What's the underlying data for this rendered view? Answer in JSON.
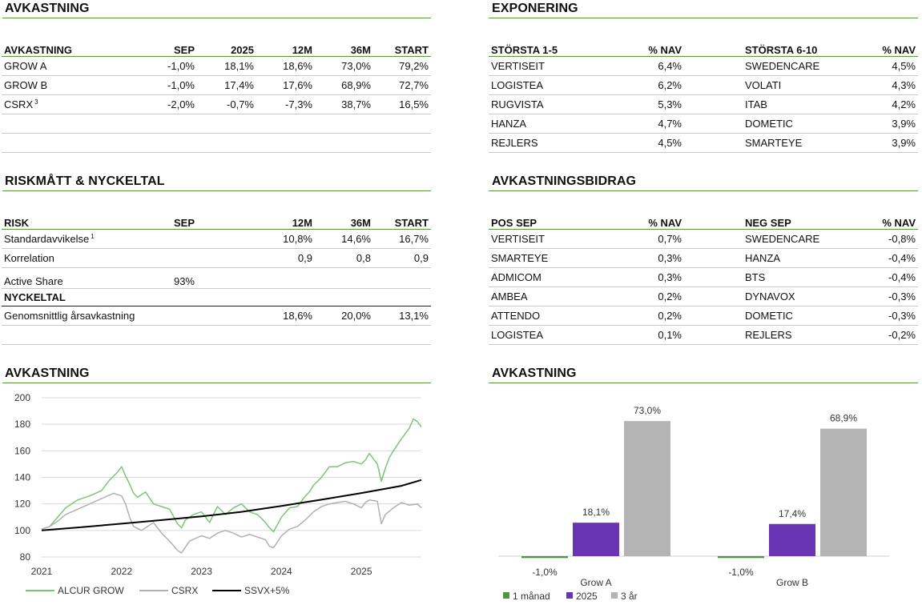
{
  "sections": {
    "returns_title": "AVKASTNING",
    "exposure_title": "EXPONERING",
    "risk_title": "RISKMÅTT & NYCKELTAL",
    "contribution_title": "AVKASTNINGSBIDRAG",
    "line_chart_title": "AVKASTNING",
    "bar_chart_title": "AVKASTNING"
  },
  "returns_table": {
    "headers": [
      "AVKASTNING",
      "SEP",
      "2025",
      "12M",
      "36M",
      "START"
    ],
    "rows": [
      {
        "name": "GROW A",
        "sup": "",
        "values": [
          "-1,0%",
          "18,1%",
          "18,6%",
          "73,0%",
          "79,2%"
        ]
      },
      {
        "name": "GROW B",
        "sup": "",
        "values": [
          "-1,0%",
          "17,4%",
          "17,6%",
          "68,9%",
          "72,7%"
        ]
      },
      {
        "name": "CSRX",
        "sup": "3",
        "values": [
          "-2,0%",
          "-0,7%",
          "-7,3%",
          "38,7%",
          "16,5%"
        ]
      }
    ]
  },
  "exposure_table": {
    "headers": [
      "STÖRSTA 1-5",
      "% NAV",
      "STÖRSTA 6-10",
      "% NAV"
    ],
    "rows": [
      [
        "VERTISEIT",
        "6,4%",
        "SWEDENCARE",
        "4,5%"
      ],
      [
        "LOGISTEA",
        "6,2%",
        "VOLATI",
        "4,3%"
      ],
      [
        "RUGVISTA",
        "5,3%",
        "ITAB",
        "4,2%"
      ],
      [
        "HANZA",
        "4,7%",
        "DOMETIC",
        "3,9%"
      ],
      [
        "REJLERS",
        "4,5%",
        "SMARTEYE",
        "3,9%"
      ]
    ]
  },
  "risk_table": {
    "headers": [
      "RISK",
      "SEP",
      "12M",
      "36M",
      "START"
    ],
    "rows": [
      {
        "name": "Standardavvikelse",
        "sup": "1",
        "values": [
          "",
          "10,8%",
          "14,6%",
          "16,7%"
        ]
      },
      {
        "name": "Korrelation",
        "sup": "",
        "values": [
          "",
          "0,9",
          "0,8",
          "0,9"
        ]
      },
      {
        "name": "Active Share",
        "sup": "",
        "values": [
          "93%",
          "",
          "",
          ""
        ]
      }
    ],
    "subheader": "NYCKELTAL",
    "key_rows": [
      {
        "name": "Genomsnittlig årsavkastning",
        "values": [
          "",
          "18,6%",
          "20,0%",
          "13,1%"
        ]
      }
    ]
  },
  "contribution_table": {
    "headers": [
      "POS SEP",
      "% NAV",
      "NEG SEP",
      "% NAV"
    ],
    "rows": [
      [
        "VERTISEIT",
        "0,7%",
        "SWEDENCARE",
        "-0,8%"
      ],
      [
        "SMARTEYE",
        "0,3%",
        "HANZA",
        "-0,4%"
      ],
      [
        "ADMICOM",
        "0,3%",
        "BTS",
        "-0,4%"
      ],
      [
        "AMBEA",
        "0,2%",
        "DYNAVOX",
        "-0,3%"
      ],
      [
        "ATTENDO",
        "0,2%",
        "DOMETIC",
        "-0,3%"
      ],
      [
        "LOGISTEA",
        "0,1%",
        "REJLERS",
        "-0,2%"
      ]
    ]
  },
  "chart_data": [
    {
      "type": "line",
      "title": "AVKASTNING",
      "xlabel": "",
      "ylabel": "",
      "x_ticks": [
        "2021",
        "2022",
        "2023",
        "2024",
        "2025"
      ],
      "x_range": [
        2021.0,
        2025.75
      ],
      "y_ticks": [
        80,
        100,
        120,
        140,
        160,
        180,
        200
      ],
      "ylim": [
        80,
        200
      ],
      "grid": true,
      "legend_position": "bottom-left",
      "series": [
        {
          "name": "ALCUR GROW",
          "color": "#7cc576",
          "x": [
            2021.0,
            2021.1,
            2021.2,
            2021.3,
            2021.45,
            2021.6,
            2021.75,
            2021.85,
            2021.95,
            2022.0,
            2022.05,
            2022.1,
            2022.15,
            2022.2,
            2022.3,
            2022.4,
            2022.5,
            2022.6,
            2022.7,
            2022.75,
            2022.8,
            2022.9,
            2023.0,
            2023.1,
            2023.2,
            2023.3,
            2023.4,
            2023.5,
            2023.6,
            2023.7,
            2023.8,
            2023.85,
            2023.9,
            2024.0,
            2024.1,
            2024.2,
            2024.3,
            2024.35,
            2024.4,
            2024.5,
            2024.6,
            2024.7,
            2024.8,
            2024.9,
            2025.0,
            2025.05,
            2025.1,
            2025.15,
            2025.2,
            2025.25,
            2025.3,
            2025.35,
            2025.4,
            2025.5,
            2025.6,
            2025.65,
            2025.7,
            2025.75
          ],
          "values": [
            101,
            103,
            110,
            117,
            123,
            126,
            130,
            138,
            144,
            148,
            141,
            135,
            128,
            125,
            129,
            120,
            118,
            116,
            105,
            102,
            108,
            112,
            114,
            106,
            118,
            112,
            117,
            120,
            114,
            112,
            106,
            102,
            99,
            110,
            117,
            118,
            126,
            129,
            134,
            140,
            148,
            148,
            151,
            152,
            150,
            153,
            158,
            154,
            150,
            137,
            147,
            155,
            160,
            169,
            177,
            184,
            182,
            178
          ]
        },
        {
          "name": "CSRX",
          "color": "#b0b0b0",
          "x": [
            2021.0,
            2021.1,
            2021.2,
            2021.3,
            2021.45,
            2021.6,
            2021.75,
            2021.9,
            2022.0,
            2022.05,
            2022.1,
            2022.15,
            2022.25,
            2022.4,
            2022.5,
            2022.6,
            2022.7,
            2022.75,
            2022.85,
            2023.0,
            2023.1,
            2023.2,
            2023.3,
            2023.4,
            2023.5,
            2023.6,
            2023.7,
            2023.8,
            2023.85,
            2023.9,
            2024.0,
            2024.1,
            2024.2,
            2024.3,
            2024.4,
            2024.5,
            2024.6,
            2024.7,
            2024.8,
            2024.9,
            2025.0,
            2025.05,
            2025.1,
            2025.2,
            2025.25,
            2025.3,
            2025.4,
            2025.5,
            2025.6,
            2025.7,
            2025.75
          ],
          "values": [
            101,
            103,
            107,
            112,
            116,
            120,
            124,
            128,
            126,
            120,
            110,
            103,
            100,
            106,
            98,
            92,
            85,
            83,
            92,
            96,
            94,
            98,
            100,
            98,
            95,
            97,
            95,
            93,
            88,
            87,
            96,
            101,
            103,
            108,
            114,
            118,
            120,
            121,
            122,
            120,
            117,
            121,
            123,
            122,
            105,
            112,
            117,
            121,
            119,
            120,
            117
          ]
        },
        {
          "name": "SSVX+5%",
          "color": "#000000",
          "x": [
            2021.0,
            2021.5,
            2022.0,
            2022.5,
            2023.0,
            2023.5,
            2024.0,
            2024.5,
            2025.0,
            2025.5,
            2025.75
          ],
          "values": [
            100,
            102.5,
            105.1,
            107.8,
            110.6,
            114.0,
            118.5,
            123.2,
            128.2,
            133.6,
            138.0
          ]
        }
      ]
    },
    {
      "type": "bar",
      "title": "AVKASTNING",
      "categories": [
        "Grow A",
        "Grow B"
      ],
      "ylim": [
        -2,
        80
      ],
      "legend_position": "bottom-left",
      "series": [
        {
          "name": "1 månad",
          "color": "#4a9a3c",
          "values": [
            -1.0,
            -1.0
          ],
          "labels": [
            "-1,0%",
            "-1,0%"
          ]
        },
        {
          "name": "2025",
          "color": "#6a35b4",
          "values": [
            18.1,
            17.4
          ],
          "labels": [
            "18,1%",
            "17,4%"
          ]
        },
        {
          "name": "3 år",
          "color": "#b4b4b4",
          "values": [
            73.0,
            68.9
          ],
          "labels": [
            "73,0%",
            "68,9%"
          ]
        }
      ]
    }
  ]
}
